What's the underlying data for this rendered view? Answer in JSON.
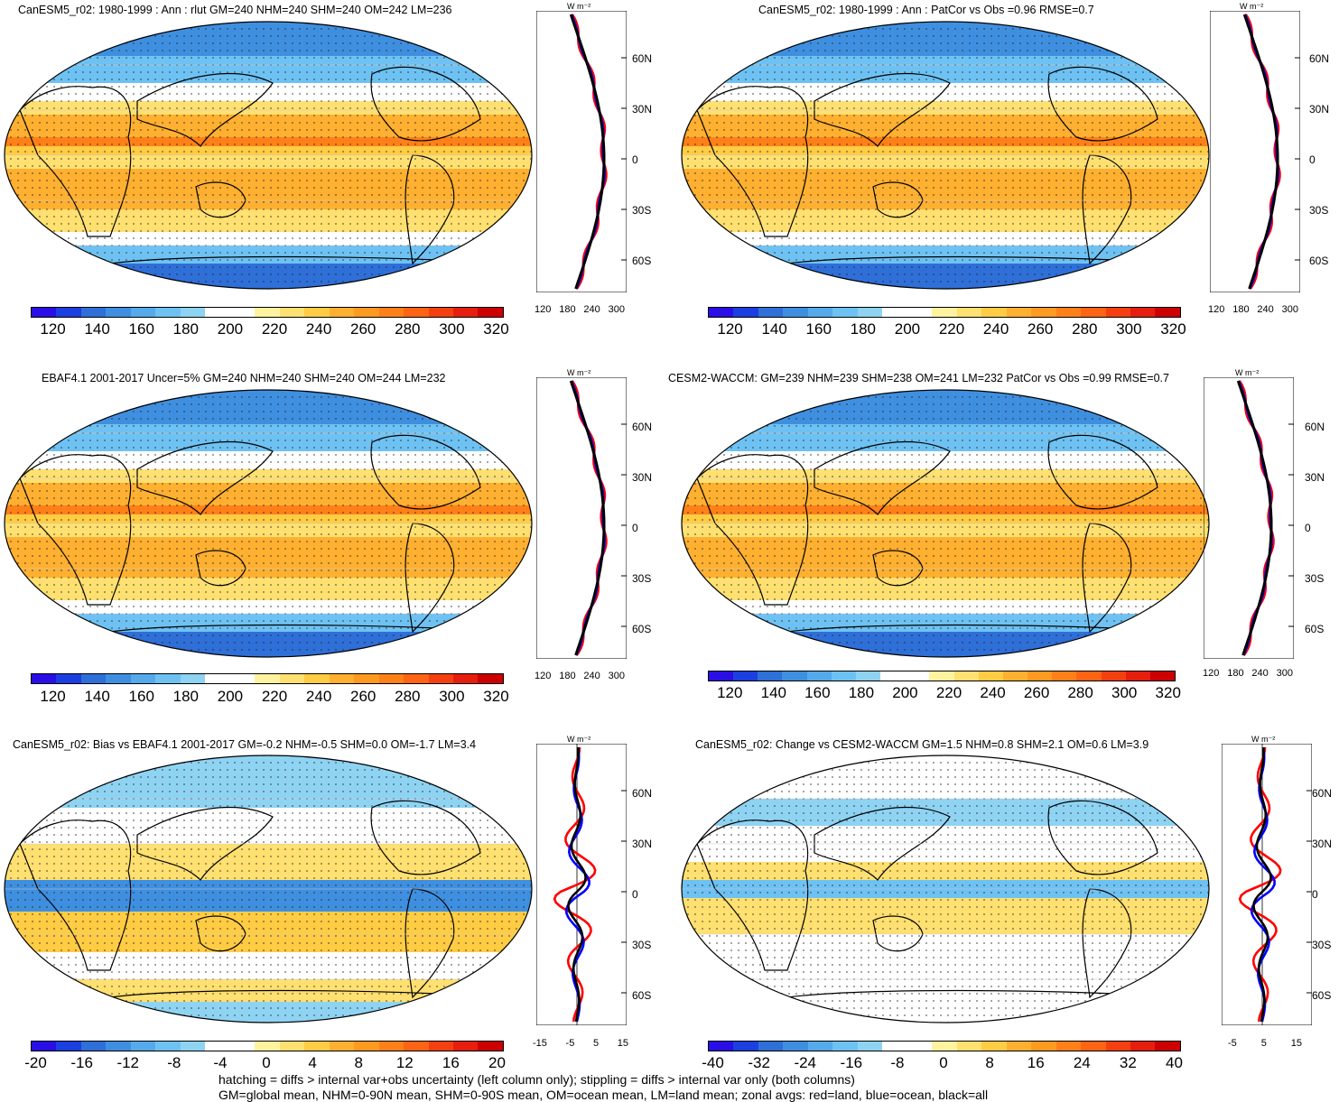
{
  "panels": [
    {
      "title": "CanESM5_r02: 1980-1999 : Ann : rlut GM=240 NHM=240 SHM=240 OM=242 LM=236",
      "type": "mean"
    },
    {
      "title": "CanESM5_r02: 1980-1999 : Ann : PatCor vs Obs =0.96 RMSE=0.7",
      "type": "mean"
    },
    {
      "title": "EBAF4.1 2001-2017 Uncer=5% GM=240 NHM=240 SHM=240 OM=244 LM=232",
      "type": "mean"
    },
    {
      "title": "CESM2-WACCM: GM=239 NHM=239 SHM=238 OM=241 LM=232 PatCor vs Obs =0.99 RMSE=0.7",
      "type": "mean"
    },
    {
      "title": "CanESM5_r02: Bias vs EBAF4.1 2001-2017 GM=-0.2 NHM=-0.5 SHM=0.0 OM=-1.7 LM=3.4",
      "type": "diff"
    },
    {
      "title": "CanESM5_r02: Change vs CESM2-WACCM GM=1.5 NHM=0.8 SHM=2.1 OM=0.6 LM=3.9",
      "type": "diff"
    }
  ],
  "colorbars": {
    "mean": [
      "120",
      "140",
      "160",
      "180",
      "200",
      "220",
      "240",
      "260",
      "280",
      "300",
      "320"
    ],
    "bias": [
      "-20",
      "-16",
      "-12",
      "-8",
      "-4",
      "0",
      "4",
      "8",
      "12",
      "16",
      "20"
    ],
    "change": [
      "-40",
      "-32",
      "-24",
      "-16",
      "-8",
      "0",
      "8",
      "16",
      "24",
      "32",
      "40"
    ]
  },
  "zonal_ticks": {
    "mean": [
      "120",
      "180",
      "240",
      "300"
    ],
    "bias": [
      "-15",
      "-5",
      "5",
      "15"
    ],
    "change": [
      "-5",
      "5",
      "15"
    ]
  },
  "lat_labels": [
    "60N",
    "30N",
    "0",
    "30S",
    "60S"
  ],
  "units": "W m⁻²",
  "colors": {
    "land": "#ff0000",
    "ocean": "#0000ff",
    "all": "#000000"
  },
  "footer": [
    "hatching = diffs > internal var+obs uncertainty (left column only); stippling = diffs > internal var only (both columns)",
    "GM=global mean, NHM=0-90N mean, SHM=0-90S mean, OM=ocean mean, LM=land mean; zonal avgs: red=land, blue=ocean, black=all"
  ]
}
